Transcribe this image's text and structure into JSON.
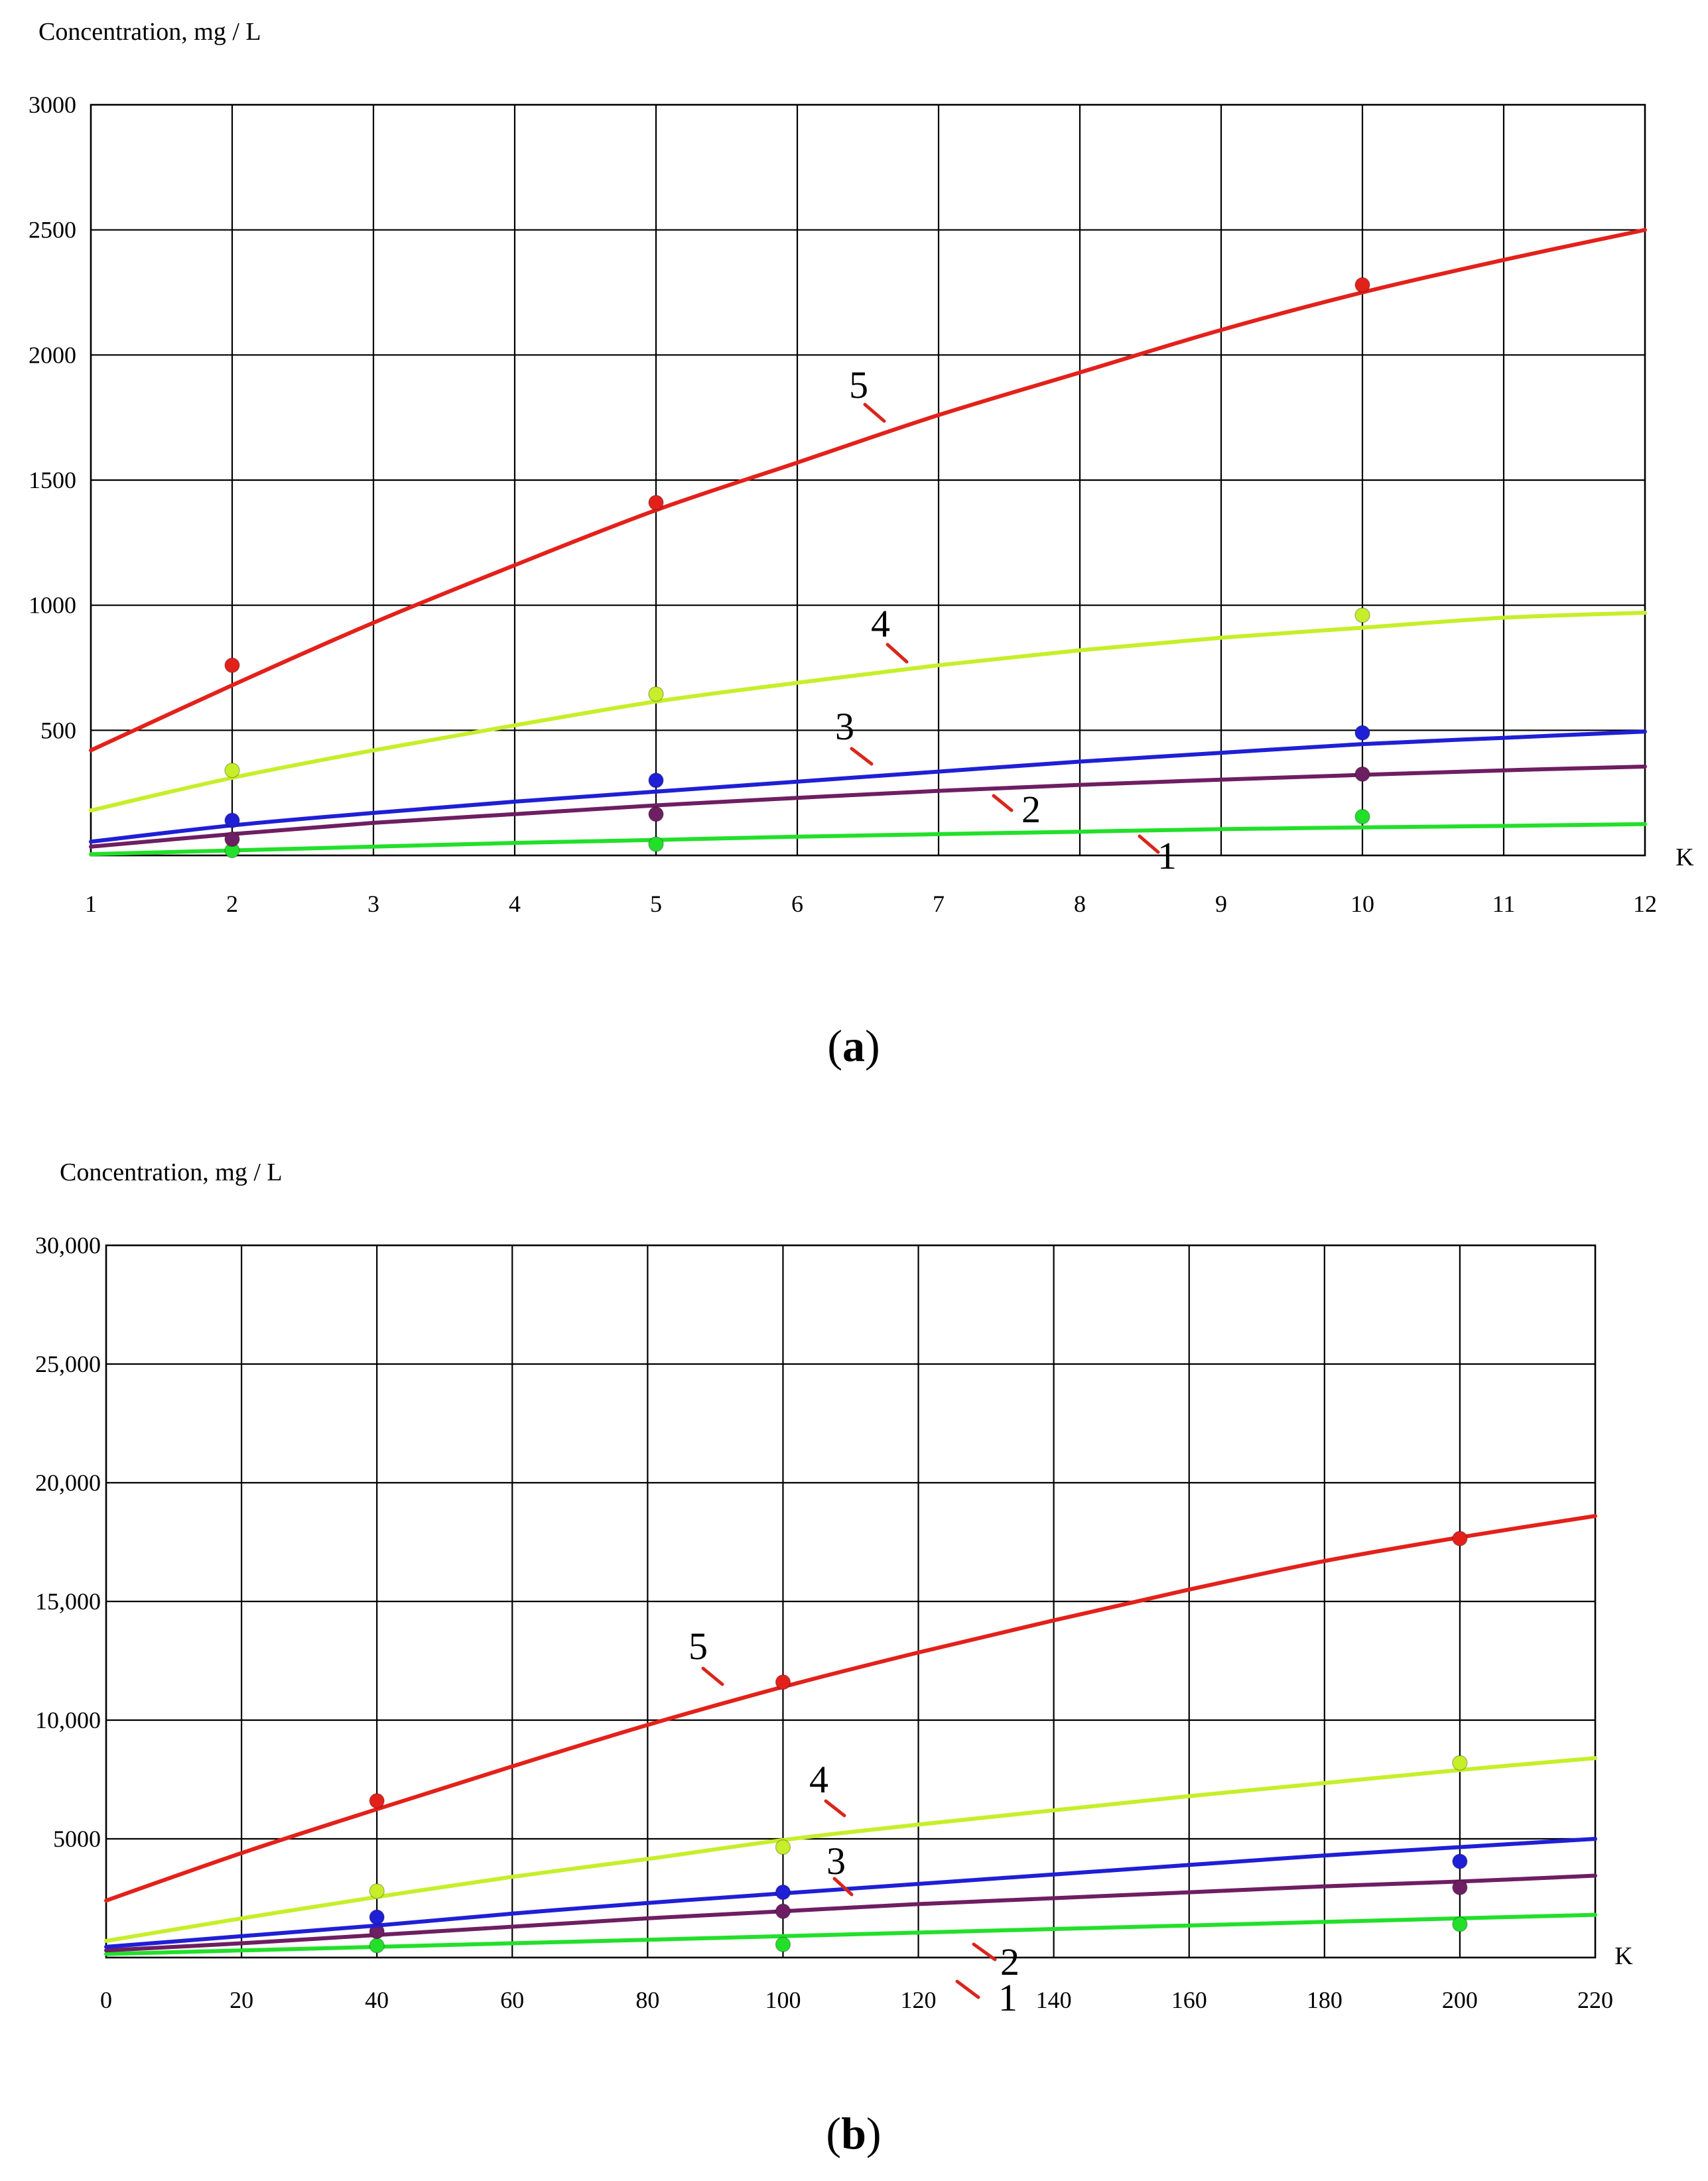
{
  "chart_data": [
    {
      "type": "line",
      "panel_label": "(a)",
      "panel_letter": "a",
      "ylabel": "Concentration, mg / L",
      "xlabel": "K",
      "xlim": [
        1,
        12
      ],
      "ylim": [
        0,
        3000
      ],
      "x_ticks": [
        1,
        2,
        3,
        4,
        5,
        6,
        7,
        8,
        9,
        10,
        11,
        12
      ],
      "x_tick_labels": [
        "1",
        "2",
        "3",
        "4",
        "5",
        "6",
        "7",
        "8",
        "9",
        "10",
        "11",
        "12"
      ],
      "y_ticks": [
        500,
        1000,
        1500,
        2000,
        2500,
        3000
      ],
      "y_tick_labels": [
        "500",
        "1000",
        "1500",
        "2000",
        "2500",
        "3000"
      ],
      "grid": true,
      "series": [
        {
          "name": "1",
          "label": "1",
          "color": "#22e02a",
          "curve": {
            "x": [
              1,
              2,
              3,
              4,
              5,
              6,
              7,
              8,
              9,
              10,
              11,
              12
            ],
            "y": [
              5,
              20,
              35,
              50,
              62,
              75,
              85,
              95,
              105,
              112,
              118,
              125
            ]
          },
          "points": {
            "x": [
              2,
              5,
              10
            ],
            "y": [
              20,
              45,
              155
            ]
          }
        },
        {
          "name": "2",
          "label": "2",
          "color": "#6e1e62",
          "curve": {
            "x": [
              1,
              2,
              3,
              4,
              5,
              6,
              7,
              8,
              9,
              10,
              11,
              12
            ],
            "y": [
              35,
              85,
              130,
              165,
              200,
              230,
              258,
              282,
              303,
              322,
              340,
              355
            ]
          },
          "points": {
            "x": [
              2,
              5,
              10
            ],
            "y": [
              65,
              165,
              325
            ]
          }
        },
        {
          "name": "3",
          "label": "3",
          "color": "#1f1fd6",
          "curve": {
            "x": [
              1,
              2,
              3,
              4,
              5,
              6,
              7,
              8,
              9,
              10,
              11,
              12
            ],
            "y": [
              55,
              120,
              170,
              215,
              255,
              295,
              335,
              375,
              410,
              445,
              470,
              495
            ]
          },
          "points": {
            "x": [
              2,
              5,
              10
            ],
            "y": [
              140,
              300,
              490
            ]
          }
        },
        {
          "name": "4",
          "label": "4",
          "color": "#c6ef2a",
          "curve": {
            "x": [
              1,
              2,
              3,
              4,
              5,
              6,
              7,
              8,
              9,
              10,
              11,
              12
            ],
            "y": [
              180,
              310,
              420,
              520,
              615,
              690,
              760,
              820,
              870,
              910,
              950,
              970
            ]
          },
          "points": {
            "x": [
              2,
              5,
              10
            ],
            "y": [
              340,
              645,
              960
            ]
          }
        },
        {
          "name": "5",
          "label": "5",
          "color": "#e3211b",
          "curve": {
            "x": [
              1,
              2,
              3,
              4,
              5,
              6,
              7,
              8,
              9,
              10,
              11,
              12
            ],
            "y": [
              420,
              680,
              930,
              1160,
              1380,
              1570,
              1760,
              1930,
              2100,
              2250,
              2380,
              2500
            ]
          },
          "points": {
            "x": [
              2,
              5,
              10
            ],
            "y": [
              760,
              1410,
              2280
            ]
          }
        }
      ]
    },
    {
      "type": "line",
      "panel_label": "(b)",
      "panel_letter": "b",
      "ylabel": "Concentration, mg / L",
      "xlabel": "K",
      "xlim": [
        0,
        220
      ],
      "ylim": [
        0,
        30000
      ],
      "x_ticks": [
        0,
        20,
        40,
        60,
        80,
        100,
        120,
        140,
        160,
        180,
        200,
        220
      ],
      "x_tick_labels": [
        "0",
        "20",
        "40",
        "60",
        "80",
        "100",
        "120",
        "140",
        "160",
        "180",
        "200",
        "220"
      ],
      "y_ticks": [
        5000,
        10000,
        15000,
        20000,
        25000,
        30000
      ],
      "y_tick_labels": [
        "5000",
        "10,000",
        "15,000",
        "20,000",
        "25,000",
        "30,000"
      ],
      "grid": true,
      "series": [
        {
          "name": "1",
          "label": "1",
          "color": "#22e02a",
          "curve": {
            "x": [
              0,
              20,
              40,
              60,
              80,
              100,
              120,
              140,
              160,
              180,
              200,
              220
            ],
            "y": [
              150,
              300,
              450,
              600,
              750,
              900,
              1050,
              1200,
              1350,
              1500,
              1650,
              1800
            ]
          },
          "points": {
            "x": [
              40,
              100,
              200
            ],
            "y": [
              500,
              550,
              1400
            ]
          }
        },
        {
          "name": "2",
          "label": "2",
          "color": "#6e1e62",
          "curve": {
            "x": [
              0,
              20,
              40,
              60,
              80,
              100,
              120,
              140,
              160,
              180,
              200,
              220
            ],
            "y": [
              300,
              600,
              950,
              1300,
              1650,
              1950,
              2250,
              2500,
              2750,
              3000,
              3200,
              3450
            ]
          },
          "points": {
            "x": [
              40,
              100,
              200
            ],
            "y": [
              1100,
              1950,
              2950
            ]
          }
        },
        {
          "name": "3",
          "label": "3",
          "color": "#1f1fd6",
          "curve": {
            "x": [
              0,
              20,
              40,
              60,
              80,
              100,
              120,
              140,
              160,
              180,
              200,
              220
            ],
            "y": [
              450,
              900,
              1350,
              1850,
              2300,
              2700,
              3100,
              3500,
              3900,
              4300,
              4650,
              5000
            ]
          },
          "points": {
            "x": [
              40,
              100,
              200
            ],
            "y": [
              1700,
              2750,
              4050
            ]
          }
        },
        {
          "name": "4",
          "label": "4",
          "color": "#c6ef2a",
          "curve": {
            "x": [
              0,
              20,
              40,
              60,
              80,
              100,
              120,
              140,
              160,
              180,
              200,
              220
            ],
            "y": [
              700,
              1650,
              2550,
              3400,
              4150,
              4950,
              5600,
              6200,
              6800,
              7350,
              7900,
              8400
            ]
          },
          "points": {
            "x": [
              40,
              100,
              200
            ],
            "y": [
              2800,
              4650,
              8200
            ]
          }
        },
        {
          "name": "5",
          "label": "5",
          "color": "#e3211b",
          "curve": {
            "x": [
              0,
              20,
              40,
              60,
              80,
              100,
              120,
              140,
              160,
              180,
              200,
              220
            ],
            "y": [
              2400,
              4400,
              6250,
              8050,
              9800,
              11400,
              12850,
              14200,
              15500,
              16700,
              17700,
              18600
            ]
          },
          "points": {
            "x": [
              40,
              100,
              200
            ],
            "y": [
              6600,
              11600,
              17650
            ]
          }
        }
      ]
    }
  ]
}
